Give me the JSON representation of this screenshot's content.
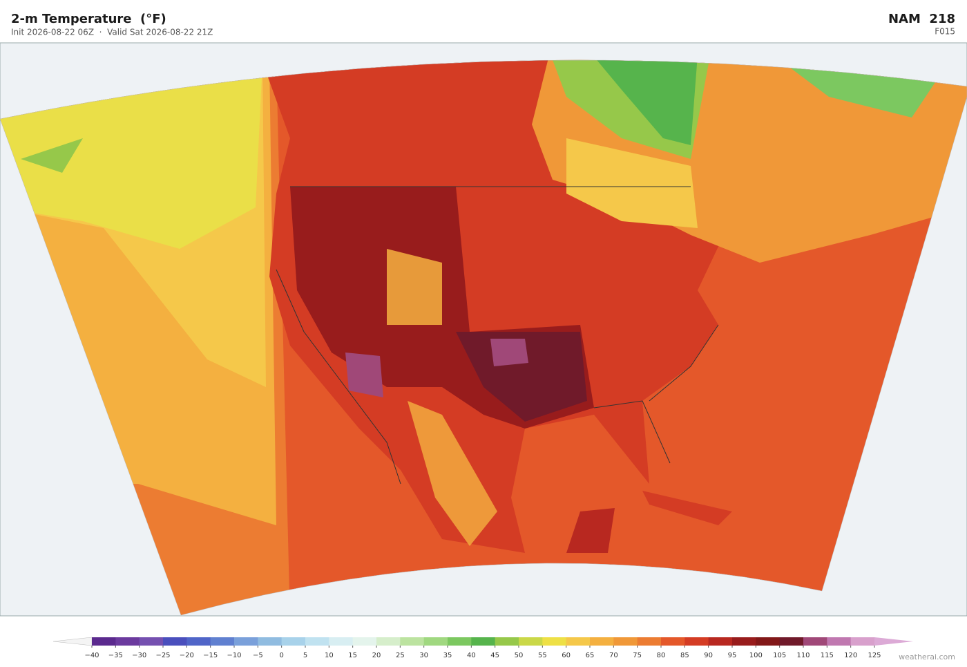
{
  "header": {
    "title": "2-m Temperature  (°F)",
    "subtitle": "Init 2026-08-22 06Z  ·  Valid Sat 2026-08-22 21Z",
    "model": "NAM  218",
    "forecast_hour": "F015"
  },
  "colorbar": {
    "ticks": [
      {
        "value": -40,
        "label": "−40"
      },
      {
        "value": -35,
        "label": "−35"
      },
      {
        "value": -30,
        "label": "−30"
      },
      {
        "value": -25,
        "label": "−25"
      },
      {
        "value": -20,
        "label": "−20"
      },
      {
        "value": -15,
        "label": "−15"
      },
      {
        "value": -10,
        "label": "−10"
      },
      {
        "value": -5,
        "label": "−5"
      },
      0,
      5,
      10,
      15,
      20,
      25,
      30,
      35,
      40,
      45,
      50,
      55,
      60,
      65,
      70,
      75,
      80,
      85,
      90,
      95,
      100,
      105,
      110,
      115,
      120,
      125
    ],
    "colors": [
      "#5b2a8e",
      "#6b3a9e",
      "#7550b0",
      "#4a4fbd",
      "#5065c8",
      "#6080d0",
      "#7aa0da",
      "#90bce0",
      "#a8d2ea",
      "#c0e2f0",
      "#d8eef2",
      "#e4f4ec",
      "#d6eecb",
      "#bce3a0",
      "#a0d880",
      "#7cc860",
      "#56b44c",
      "#96c84a",
      "#cad848",
      "#eee046",
      "#f5c84a",
      "#f4b040",
      "#f09838",
      "#ec7c32",
      "#e4582a",
      "#d43c24",
      "#b82820",
      "#981c1c",
      "#821818",
      "#701a2a",
      "#a04878",
      "#c078b0",
      "#d8a0cc"
    ],
    "under_color": "#f4f4f4",
    "over_color": "#dcaad6"
  },
  "credit": "weatherai.com"
}
